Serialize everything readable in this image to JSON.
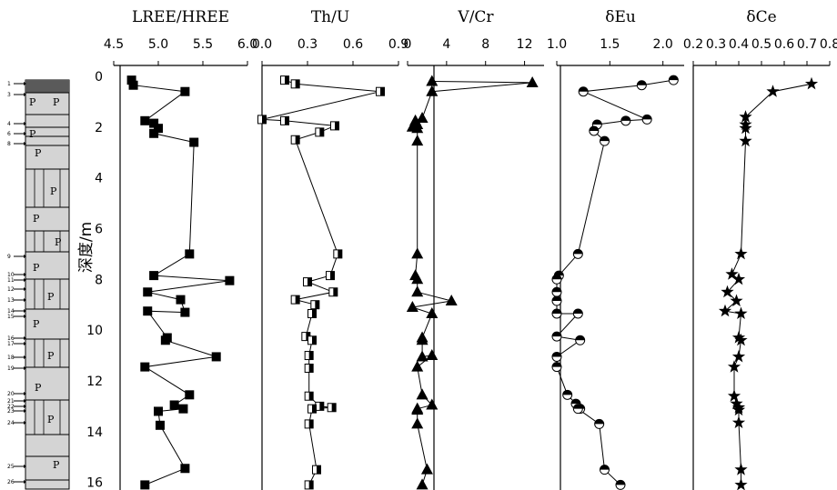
{
  "depth_axis": {
    "label": "深度/m",
    "range": [
      -0.5,
      16.3
    ],
    "ticks": [
      0,
      2,
      4,
      6,
      8,
      10,
      12,
      14,
      16
    ]
  },
  "colors": {
    "ink": "#000000",
    "litho_fill": "#d4d4d4",
    "litho_dark": "#5a5a5a"
  },
  "lithology": {
    "letters": [
      "P",
      "P",
      "P",
      "P",
      "P",
      "P",
      "P",
      "P",
      "P",
      "P",
      "P",
      "P",
      "P",
      "P"
    ],
    "sample_numbers": [
      "1",
      "3",
      "4",
      "6",
      "8",
      "9",
      "10",
      "11",
      "12",
      "13",
      "14",
      "15",
      "16",
      "17",
      "18",
      "19",
      "20",
      "21",
      "22",
      "23",
      "24",
      "25",
      "26"
    ]
  },
  "chart_data": [
    {
      "type": "line",
      "title": "LREE/HREE",
      "xlim": [
        4.5,
        6.0
      ],
      "xticks": [
        "4.5",
        "5.0",
        "5.5",
        "6.0"
      ],
      "marker": "square-filled",
      "x": [
        4.7,
        4.72,
        5.3,
        4.85,
        4.95,
        5.0,
        4.95,
        5.4,
        5.35,
        4.95,
        5.8,
        4.88,
        5.25,
        5.3,
        4.88,
        5.1,
        5.08,
        5.65,
        4.85,
        5.35,
        5.18,
        5.28,
        5.0,
        5.02,
        5.3,
        4.85
      ],
      "depth": [
        0.15,
        0.35,
        0.6,
        1.75,
        1.85,
        2.05,
        2.25,
        2.6,
        7.0,
        7.85,
        8.05,
        8.5,
        8.8,
        9.3,
        9.25,
        10.3,
        10.4,
        11.05,
        11.45,
        12.55,
        12.95,
        13.1,
        13.2,
        13.75,
        15.45,
        16.1
      ]
    },
    {
      "type": "line",
      "title": "Th/U",
      "xlim": [
        0.0,
        0.9
      ],
      "xticks": [
        "0.0",
        "0.3",
        "0.6",
        "0.9"
      ],
      "marker": "square-half",
      "x": [
        0.15,
        0.22,
        0.78,
        0.0,
        0.15,
        0.48,
        0.38,
        0.22,
        0.5,
        0.45,
        0.3,
        0.47,
        0.22,
        0.35,
        0.33,
        0.29,
        0.33,
        0.31,
        0.31,
        0.31,
        0.38,
        0.46,
        0.33,
        0.31,
        0.36,
        0.31
      ],
      "depth": [
        0.15,
        0.3,
        0.6,
        1.7,
        1.75,
        1.95,
        2.2,
        2.5,
        7.0,
        7.85,
        8.1,
        8.5,
        8.8,
        9.0,
        9.35,
        10.25,
        10.4,
        11.0,
        11.5,
        12.6,
        13.0,
        13.05,
        13.1,
        13.7,
        15.5,
        16.1
      ]
    },
    {
      "type": "line",
      "title": "V/Cr",
      "xlim": [
        0,
        14
      ],
      "xticks": [
        "0",
        "4",
        "8",
        "12"
      ],
      "marker": "triangle-filled",
      "x": [
        2.5,
        12.8,
        2.5,
        1.5,
        0.8,
        1.0,
        0.5,
        1.0,
        1.0,
        1.0,
        0.8,
        1.0,
        1.0,
        4.5,
        0.5,
        2.5,
        1.5,
        1.5,
        1.5,
        2.5,
        1.0,
        1.5,
        2.5,
        1.0,
        1.0,
        1.0,
        2.0,
        1.5
      ],
      "depth": [
        0.2,
        0.25,
        0.6,
        1.65,
        1.75,
        1.9,
        2.0,
        2.05,
        2.55,
        7.0,
        7.85,
        8.0,
        8.5,
        8.85,
        9.1,
        9.35,
        10.3,
        10.4,
        11.05,
        11.0,
        11.45,
        12.55,
        12.95,
        13.1,
        13.15,
        13.7,
        15.5,
        16.1
      ]
    },
    {
      "type": "line",
      "title": "δEu",
      "xlim": [
        1.0,
        2.2
      ],
      "xticks": [
        "1.0",
        "1.5",
        "2.0"
      ],
      "marker": "circle-half",
      "x": [
        2.1,
        1.8,
        1.25,
        1.85,
        1.65,
        1.38,
        1.35,
        1.45,
        1.2,
        1.02,
        1.0,
        1.0,
        1.0,
        1.0,
        1.2,
        1.0,
        1.22,
        1.0,
        1.0,
        1.1,
        1.18,
        1.22,
        1.2,
        1.4,
        1.45,
        1.6
      ],
      "depth": [
        0.15,
        0.35,
        0.6,
        1.7,
        1.75,
        1.9,
        2.15,
        2.55,
        7.0,
        7.85,
        8.0,
        8.5,
        8.85,
        9.35,
        9.35,
        10.25,
        10.4,
        11.05,
        11.45,
        12.55,
        12.9,
        13.1,
        13.1,
        13.7,
        15.5,
        16.1
      ]
    },
    {
      "type": "line",
      "title": "δCe",
      "xlim": [
        0.2,
        0.8
      ],
      "xticks": [
        "0.2",
        "0.3",
        "0.4",
        "0.5",
        "0.6",
        "0.7",
        "0.8"
      ],
      "marker": "star-filled",
      "x": [
        0.72,
        0.55,
        0.43,
        0.43,
        0.43,
        0.43,
        0.41,
        0.37,
        0.4,
        0.35,
        0.39,
        0.34,
        0.41,
        0.4,
        0.41,
        0.4,
        0.38,
        0.38,
        0.39,
        0.4,
        0.4,
        0.4,
        0.41,
        0.41
      ],
      "depth": [
        0.3,
        0.6,
        1.6,
        1.9,
        2.05,
        2.55,
        7.0,
        7.8,
        8.0,
        8.5,
        8.85,
        9.25,
        9.35,
        10.3,
        10.4,
        11.05,
        11.45,
        12.6,
        12.9,
        13.05,
        13.15,
        13.65,
        15.5,
        16.1
      ]
    }
  ]
}
